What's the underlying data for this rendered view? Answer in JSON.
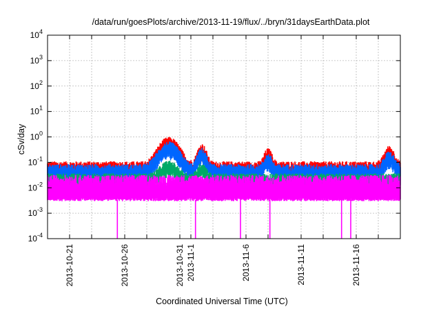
{
  "chart_data": {
    "type": "line",
    "title": "/data/run/goesPlots/archive/2013-11-19/flux/../bryn/31daysEarthData.plot",
    "xlabel": "Coordinated Universal Time (UTC)",
    "ylabel": "cSv/day",
    "yscale": "log",
    "ylim": [
      0.0001,
      10000
    ],
    "xlim": [
      "2013-10-19",
      "2013-11-20"
    ],
    "grid": true,
    "y_ticks": [
      {
        "value": 0.0001,
        "base": "10",
        "exp": "-4"
      },
      {
        "value": 0.001,
        "base": "10",
        "exp": "-3"
      },
      {
        "value": 0.01,
        "base": "10",
        "exp": "-2"
      },
      {
        "value": 0.1,
        "base": "10",
        "exp": "-1"
      },
      {
        "value": 1,
        "base": "10",
        "exp": "0"
      },
      {
        "value": 10,
        "base": "10",
        "exp": "1"
      },
      {
        "value": 100,
        "base": "10",
        "exp": "2"
      },
      {
        "value": 1000,
        "base": "10",
        "exp": "3"
      },
      {
        "value": 10000,
        "base": "10",
        "exp": "4"
      }
    ],
    "x_ticks": [
      "2013-10-21",
      "2013-10-26",
      "2013-10-31",
      "2013-11-1",
      "2013-11-6",
      "2013-11-11",
      "2013-11-16"
    ],
    "x_gridlines": [
      "2013-10-21",
      "2013-10-23",
      "2013-10-26",
      "2013-10-28",
      "2013-10-31",
      "2013-11-1",
      "2013-11-3",
      "2013-11-6",
      "2013-11-8",
      "2013-11-11",
      "2013-11-13",
      "2013-11-16",
      "2013-11-18"
    ],
    "series": [
      {
        "color": "#ff0000",
        "baseline": 0.06,
        "noise": 0.05,
        "features": [
          {
            "x": "2013-10-30",
            "peak": 0.55,
            "width": 1.0
          },
          {
            "x": "2013-11-2",
            "peak": 0.3,
            "width": 0.45
          },
          {
            "x": "2013-11-8",
            "peak": 0.2,
            "width": 0.4
          },
          {
            "x": "2013-11-19",
            "peak": 0.25,
            "width": 0.5
          }
        ]
      },
      {
        "color": "#0066ff",
        "baseline": 0.045,
        "noise": 0.04,
        "features": [
          {
            "x": "2013-10-30",
            "peak": 0.35,
            "width": 1.0
          },
          {
            "x": "2013-11-2",
            "peak": 0.2,
            "width": 0.45
          },
          {
            "x": "2013-11-8",
            "peak": 0.12,
            "width": 0.4
          },
          {
            "x": "2013-11-19",
            "peak": 0.15,
            "width": 0.5
          }
        ]
      },
      {
        "color": "#00aa66",
        "baseline": 0.022,
        "noise": 0.015,
        "features": [
          {
            "x": "2013-10-30",
            "peak": 0.07,
            "width": 0.9
          },
          {
            "x": "2013-11-2",
            "peak": 0.06,
            "width": 0.45
          }
        ]
      },
      {
        "color": "#ff00ff",
        "baseline": 0.012,
        "noise": 0.02,
        "floor": 0.0033,
        "dips": [
          {
            "x": "2013-10-25 8:00",
            "value": 0.0001
          },
          {
            "x": "2013-11-1 10:00",
            "value": 0.0001
          },
          {
            "x": "2013-11-5 12:00",
            "value": 0.0001
          },
          {
            "x": "2013-11-8 4:00",
            "value": 0.0001
          },
          {
            "x": "2013-11-14 16:00",
            "value": 0.0001
          },
          {
            "x": "2013-11-15 12:00",
            "value": 0.0001
          }
        ]
      }
    ]
  }
}
